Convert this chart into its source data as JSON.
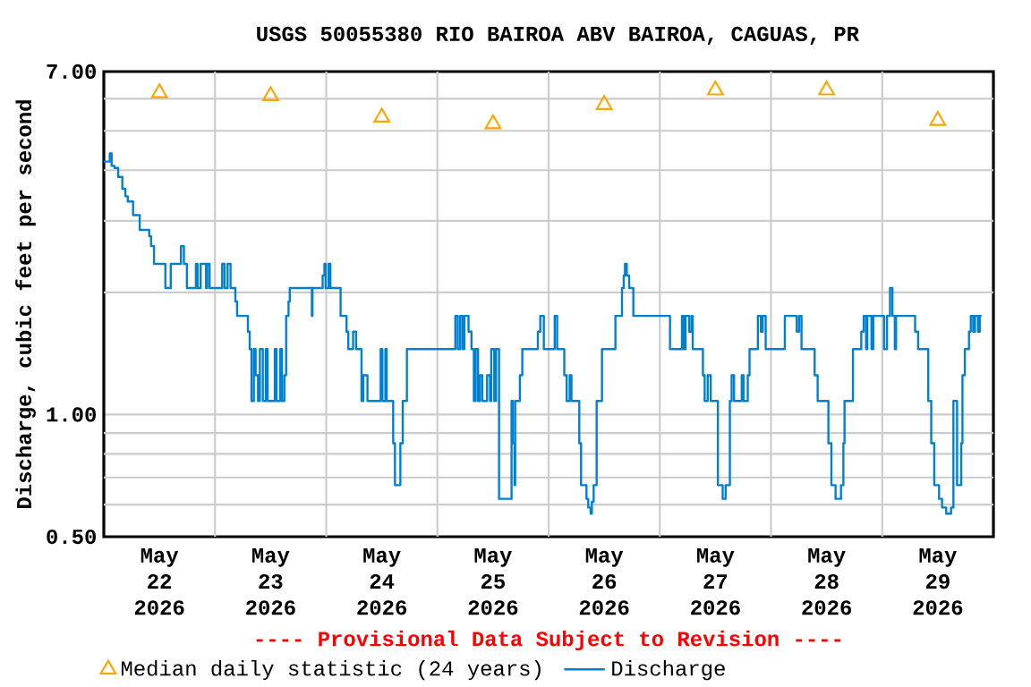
{
  "chart_data": {
    "type": "line",
    "title": "USGS 50055380 RIO BAIROA ABV BAIROA, CAGUAS, PR",
    "ylabel": "Discharge, cubic feet per second",
    "annotations": [
      "---- Provisional Data Subject to Revision ----"
    ],
    "log": true,
    "grid": true,
    "legend": "bottom",
    "xlim": [
      "2026-05-22T00:00",
      "2026-05-30T00:00"
    ],
    "xticks": [
      {
        "value": "2026-05-22T12:00",
        "label": "May 22 2026"
      },
      {
        "value": "2026-05-23T00:00",
        "label": null
      },
      {
        "value": "2026-05-23T12:00",
        "label": "May 23 2026"
      },
      {
        "value": "2026-05-24T00:00",
        "label": null
      },
      {
        "value": "2026-05-24T12:00",
        "label": "May 24 2026"
      },
      {
        "value": "2026-05-25T00:00",
        "label": null
      },
      {
        "value": "2026-05-25T12:00",
        "label": "May 25 2026"
      },
      {
        "value": "2026-05-26T00:00",
        "label": null
      },
      {
        "value": "2026-05-26T12:00",
        "label": "May 26 2026"
      },
      {
        "value": "2026-05-27T00:00",
        "label": null
      },
      {
        "value": "2026-05-27T12:00",
        "label": "May 27 2026"
      },
      {
        "value": "2026-05-28T00:00",
        "label": null
      },
      {
        "value": "2026-05-28T12:00",
        "label": "May 28 2026"
      },
      {
        "value": "2026-05-29T00:00",
        "label": null
      },
      {
        "value": "2026-05-29T12:00",
        "label": "May 29 2026"
      }
    ],
    "ylim": [
      0.5,
      7
    ],
    "yticks": [
      {
        "value": 0.5,
        "label": "0.50"
      },
      {
        "value": 0.6,
        "label": null
      },
      {
        "value": 0.7,
        "label": null
      },
      {
        "value": 0.8,
        "label": null
      },
      {
        "value": 0.9,
        "label": null
      },
      {
        "value": 1,
        "label": "1.00"
      },
      {
        "value": 2,
        "label": null
      },
      {
        "value": 3,
        "label": null
      },
      {
        "value": 4,
        "label": null
      },
      {
        "value": 5,
        "label": null
      },
      {
        "value": 6,
        "label": null
      },
      {
        "value": 7,
        "label": "7.00"
      }
    ],
    "series": [
      {
        "name": "Median daily statistic (24 years)",
        "type": "scatter",
        "marker": "triangle",
        "color": "#ffa500",
        "x": [
          "2026-05-22T12:00",
          "2026-05-23T12:00",
          "2026-05-24T12:00",
          "2026-05-25T12:00",
          "2026-05-26T12:00",
          "2026-05-27T12:00",
          "2026-05-28T12:00",
          "2026-05-29T12:00"
        ],
        "values": [
          6.2,
          6.1,
          5.4,
          5.2,
          5.8,
          6.3,
          6.3,
          5.3
        ]
      },
      {
        "name": "Discharge",
        "type": "step",
        "color": "#0080d0",
        "x": [
          "2026-05-22T00:00",
          "2026-05-22T01:17",
          "2026-05-22T01:41",
          "2026-05-22T02:19",
          "2026-05-22T03:06",
          "2026-05-22T04:00",
          "2026-05-22T04:39",
          "2026-05-22T05:10",
          "2026-05-22T06:19",
          "2026-05-22T07:45",
          "2026-05-22T09:48",
          "2026-05-22T10:12",
          "2026-05-22T10:50",
          "2026-05-22T13:17",
          "2026-05-22T14:27",
          "2026-05-22T16:39",
          "2026-05-22T17:17",
          "2026-05-22T17:56",
          "2026-05-22T19:52",
          "2026-05-22T20:15",
          "2026-05-22T20:54",
          "2026-05-22T22:04",
          "2026-05-22T22:19",
          "2026-05-22T22:50",
          "2026-05-23T01:33",
          "2026-05-23T02:04",
          "2026-05-23T02:43",
          "2026-05-23T03:21",
          "2026-05-23T04:23",
          "2026-05-23T04:46",
          "2026-05-23T07:06",
          "2026-05-23T07:29",
          "2026-05-23T07:52",
          "2026-05-23T08:23",
          "2026-05-23T08:46",
          "2026-05-23T09:17",
          "2026-05-23T09:41",
          "2026-05-23T10:19",
          "2026-05-23T10:58",
          "2026-05-23T11:21",
          "2026-05-23T12:54",
          "2026-05-23T13:17",
          "2026-05-23T14:04",
          "2026-05-23T14:27",
          "2026-05-23T14:58",
          "2026-05-23T15:21",
          "2026-05-23T15:52",
          "2026-05-23T16:08",
          "2026-05-23T20:54",
          "2026-05-23T21:02",
          "2026-05-23T23:14",
          "2026-05-23T23:37",
          "2026-05-23T23:52",
          "2026-05-24T00:31",
          "2026-05-24T00:54",
          "2026-05-24T03:06",
          "2026-05-24T04:23",
          "2026-05-24T04:46",
          "2026-05-24T05:48",
          "2026-05-24T06:27",
          "2026-05-24T07:37",
          "2026-05-24T08:00",
          "2026-05-24T08:54",
          "2026-05-24T11:45",
          "2026-05-24T12:08",
          "2026-05-24T12:46",
          "2026-05-24T13:02",
          "2026-05-24T14:27",
          "2026-05-24T14:50",
          "2026-05-24T16:00",
          "2026-05-24T16:31",
          "2026-05-24T17:25",
          "2026-05-25T03:52",
          "2026-05-25T04:23",
          "2026-05-25T04:54",
          "2026-05-25T05:25",
          "2026-05-25T05:48",
          "2026-05-25T06:43",
          "2026-05-25T07:21",
          "2026-05-25T07:52",
          "2026-05-25T08:15",
          "2026-05-25T08:46",
          "2026-05-25T09:10",
          "2026-05-25T09:41",
          "2026-05-25T10:43",
          "2026-05-25T11:21",
          "2026-05-25T11:37",
          "2026-05-25T12:16",
          "2026-05-25T12:39",
          "2026-05-25T13:18",
          "2026-05-25T16:00",
          "2026-05-25T16:16",
          "2026-05-25T16:39",
          "2026-05-25T16:47",
          "2026-05-25T17:48",
          "2026-05-25T18:19",
          "2026-05-25T21:41",
          "2026-05-25T22:12",
          "2026-05-25T22:58",
          "2026-05-26T01:19",
          "2026-05-26T01:50",
          "2026-05-26T03:23",
          "2026-05-26T03:54",
          "2026-05-26T04:33",
          "2026-05-26T04:56",
          "2026-05-26T06:37",
          "2026-05-26T07:00",
          "2026-05-26T08:10",
          "2026-05-26T08:33",
          "2026-05-26T09:04",
          "2026-05-26T09:20",
          "2026-05-26T09:43",
          "2026-05-26T10:22",
          "2026-05-26T11:31",
          "2026-05-26T14:25",
          "2026-05-26T15:50",
          "2026-05-26T16:13",
          "2026-05-26T16:29",
          "2026-05-26T16:52",
          "2026-05-26T17:23",
          "2026-05-26T18:17",
          "2026-05-27T02:12",
          "2026-05-27T04:47",
          "2026-05-27T05:10",
          "2026-05-27T05:33",
          "2026-05-27T06:20",
          "2026-05-27T06:51",
          "2026-05-27T07:06",
          "2026-05-27T09:18",
          "2026-05-27T09:41",
          "2026-05-27T10:20",
          "2026-05-27T10:59",
          "2026-05-27T12:32",
          "2026-05-27T13:34",
          "2026-05-27T14:12",
          "2026-05-27T15:07",
          "2026-05-27T15:30",
          "2026-05-27T16:01",
          "2026-05-27T17:41",
          "2026-05-27T18:05",
          "2026-05-27T18:59",
          "2026-05-27T19:22",
          "2026-05-27T21:10",
          "2026-05-27T21:49",
          "2026-05-27T22:12",
          "2026-05-27T22:51",
          "2026-05-28T02:59",
          "2026-05-28T05:33",
          "2026-05-28T06:04",
          "2026-05-28T06:35",
          "2026-05-28T09:25",
          "2026-05-28T10:04",
          "2026-05-28T12:23",
          "2026-05-28T13:02",
          "2026-05-28T13:56",
          "2026-05-28T15:06",
          "2026-05-28T15:37",
          "2026-05-28T15:52",
          "2026-05-28T17:41",
          "2026-05-28T19:29",
          "2026-05-28T20:00",
          "2026-05-28T20:31",
          "2026-05-28T20:47",
          "2026-05-28T21:41",
          "2026-05-28T22:04",
          "2026-05-29T00:24",
          "2026-05-29T01:02",
          "2026-05-29T01:41",
          "2026-05-29T02:12",
          "2026-05-29T02:43",
          "2026-05-29T02:59",
          "2026-05-29T07:06",
          "2026-05-29T07:45",
          "2026-05-29T09:56",
          "2026-05-29T10:35",
          "2026-05-29T11:14",
          "2026-05-29T12:16",
          "2026-05-29T12:55",
          "2026-05-29T13:49",
          "2026-05-29T14:51",
          "2026-05-29T15:22",
          "2026-05-29T16:09",
          "2026-05-29T17:03",
          "2026-05-29T17:19",
          "2026-05-29T17:50",
          "2026-05-29T18:44",
          "2026-05-29T19:07",
          "2026-05-29T19:38",
          "2026-05-29T20:01",
          "2026-05-29T20:40",
          "2026-05-29T21:03",
          "2026-05-29T21:26"
        ],
        "values": [
          4.2,
          4.4,
          4.1,
          4.05,
          3.85,
          3.6,
          3.45,
          3.35,
          3.1,
          2.85,
          2.75,
          2.6,
          2.35,
          2.05,
          2.35,
          2.6,
          2.35,
          2.05,
          2.35,
          2.05,
          2.35,
          2.05,
          2.35,
          2.05,
          2.35,
          2.05,
          2.35,
          2.05,
          1.9,
          1.75,
          1.6,
          1.45,
          1.08,
          1.45,
          1.25,
          1.08,
          1.45,
          1.08,
          1.45,
          1.08,
          1.45,
          1.08,
          1.45,
          1.08,
          1.25,
          1.75,
          1.9,
          2.05,
          1.75,
          2.05,
          2.2,
          2.35,
          2.05,
          2.35,
          2.05,
          1.75,
          1.6,
          1.45,
          1.6,
          1.45,
          1.08,
          1.25,
          1.08,
          1.45,
          1.08,
          1.45,
          1.08,
          0.85,
          0.67,
          0.85,
          1.08,
          1.45,
          1.75,
          1.45,
          1.75,
          1.45,
          1.75,
          1.6,
          1.45,
          1.08,
          1.45,
          1.08,
          1.25,
          1.08,
          1.25,
          1.08,
          1.45,
          1.08,
          1.45,
          0.62,
          1.08,
          0.85,
          0.67,
          1.08,
          1.25,
          1.45,
          1.6,
          1.75,
          1.45,
          1.75,
          1.45,
          1.25,
          1.08,
          1.25,
          1.08,
          0.85,
          0.67,
          0.62,
          0.59,
          0.57,
          0.61,
          0.67,
          1.08,
          1.45,
          1.75,
          2.05,
          2.2,
          2.35,
          2.2,
          2.05,
          1.75,
          1.45,
          1.75,
          1.45,
          1.75,
          1.6,
          1.75,
          1.45,
          1.25,
          1.08,
          1.25,
          1.08,
          0.67,
          0.62,
          0.67,
          1.08,
          1.25,
          1.08,
          1.25,
          1.08,
          1.25,
          1.45,
          1.75,
          1.6,
          1.75,
          1.45,
          1.75,
          1.6,
          1.75,
          1.45,
          1.25,
          1.08,
          0.85,
          0.67,
          0.62,
          0.67,
          0.85,
          1.08,
          1.45,
          1.6,
          1.75,
          1.45,
          1.75,
          1.45,
          1.75,
          1.45,
          1.75,
          2.05,
          1.75,
          1.45,
          1.75,
          1.6,
          1.45,
          1.08,
          0.85,
          0.67,
          0.62,
          0.59,
          0.57,
          0.59,
          1.08,
          0.67,
          0.85,
          1.25,
          1.45,
          1.6,
          1.75,
          1.6,
          1.75,
          1.6,
          1.75,
          1.75
        ]
      }
    ]
  }
}
